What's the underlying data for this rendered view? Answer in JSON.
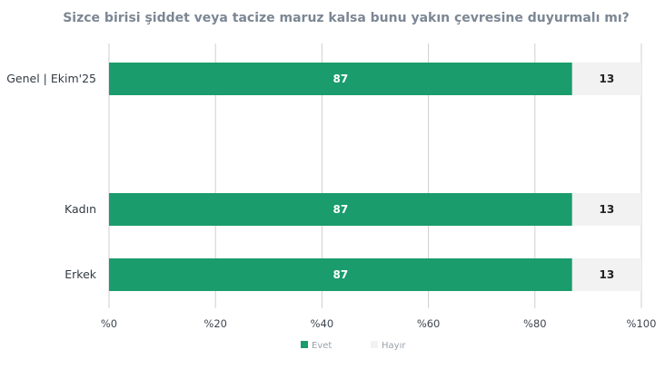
{
  "chart_data": {
    "type": "bar",
    "orientation": "horizontal",
    "stacked": true,
    "title": "Sizce birisi şiddet veya tacize maruz kalsa bunu yakın çevresine duyurmalı mı?",
    "categories": [
      "Genel | Ekim'25",
      "Kadın",
      "Erkek"
    ],
    "series": [
      {
        "name": "Evet",
        "color": "#1a9c6c",
        "values": [
          87,
          87,
          87
        ]
      },
      {
        "name": "Hayır",
        "color": "#f2f2f2",
        "values": [
          13,
          13,
          13
        ]
      }
    ],
    "xlim": [
      0,
      100
    ],
    "xticks": [
      "%0",
      "%20",
      "%40",
      "%60",
      "%80",
      "%100"
    ],
    "xtick_values": [
      0,
      20,
      40,
      60,
      80,
      100
    ],
    "grid": true,
    "legend_position": "bottom-center"
  }
}
